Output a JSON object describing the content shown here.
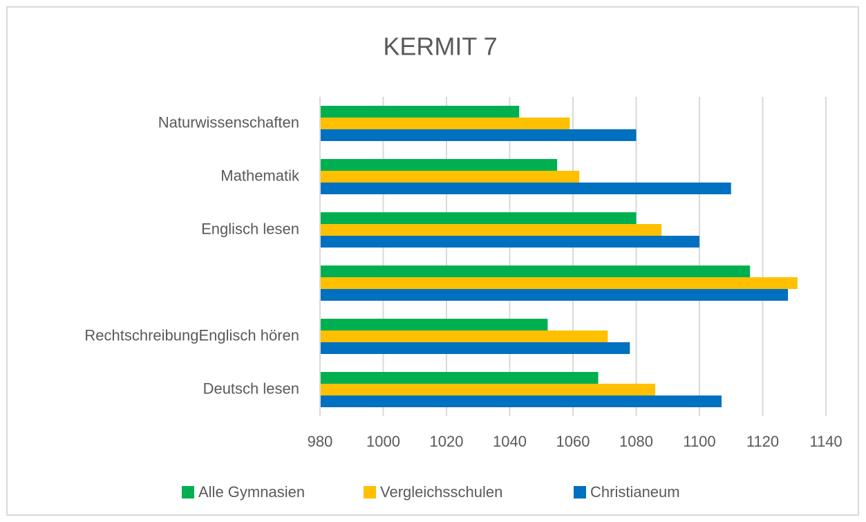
{
  "chart_data": {
    "type": "hbar",
    "title": "KERMIT 7",
    "categories": [
      "Naturwissenschaften",
      "Mathematik",
      "Englisch lesen",
      null,
      "RechtschreibungEnglisch hören",
      "Deutsch lesen"
    ],
    "series": [
      {
        "name": "Alle Gymnasien",
        "color": "#00b050",
        "values": [
          1043,
          1055,
          1080,
          1116,
          1052,
          1068
        ]
      },
      {
        "name": "Vergleichsschulen",
        "color": "#ffc000",
        "values": [
          1059,
          1062,
          1088,
          1131,
          1071,
          1086
        ]
      },
      {
        "name": "Christianeum",
        "color": "#0070c0",
        "values": [
          1080,
          1110,
          1100,
          1128,
          1078,
          1107
        ]
      }
    ],
    "xlim": [
      980,
      1140
    ],
    "xticks": [
      980,
      1000,
      1020,
      1040,
      1060,
      1080,
      1100,
      1120,
      1140
    ],
    "grid": true
  }
}
